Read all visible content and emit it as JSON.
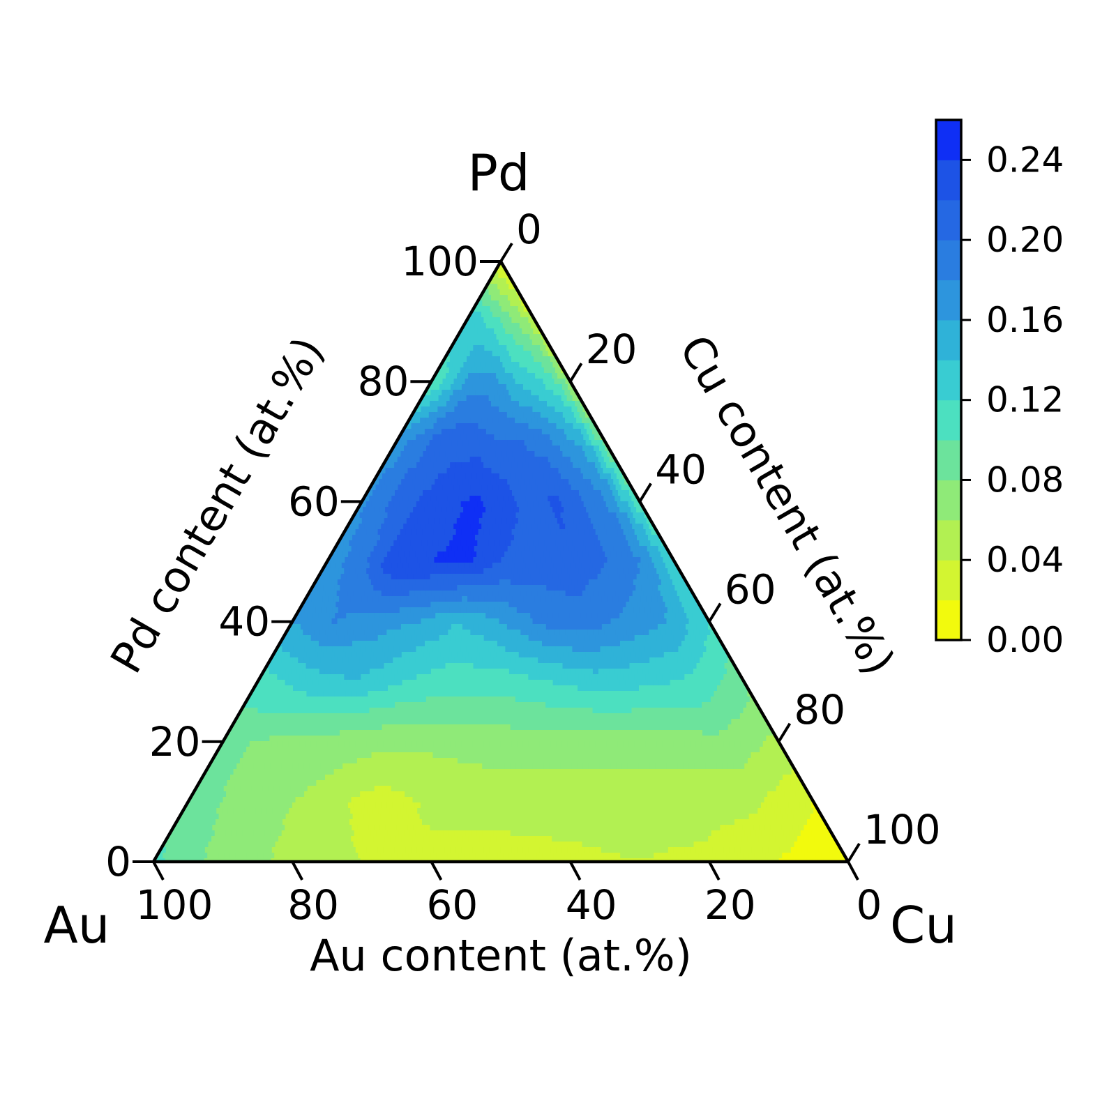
{
  "chart_data": {
    "type": "heatmap",
    "subtype": "ternary-filled-contour",
    "title": "",
    "corners": {
      "top": "Pd",
      "left": "Au",
      "right": "Cu"
    },
    "axes": {
      "bottom": {
        "label": "Au content (at.%)",
        "ticks": [
          "100",
          "80",
          "60",
          "40",
          "20",
          "0"
        ],
        "range": [
          0,
          100
        ]
      },
      "left": {
        "label": "Pd content (at.%)",
        "ticks": [
          "0",
          "20",
          "40",
          "60",
          "80",
          "100"
        ],
        "range": [
          0,
          100
        ]
      },
      "right": {
        "label": "Cu content (at.%)",
        "ticks": [
          "0",
          "20",
          "40",
          "60",
          "80",
          "100"
        ],
        "range": [
          0,
          100
        ]
      }
    },
    "colorbar": {
      "range": [
        0,
        0.26
      ],
      "ticks": [
        "0.00",
        "0.04",
        "0.08",
        "0.12",
        "0.16",
        "0.20",
        "0.24"
      ],
      "levels": [
        0.0,
        0.02,
        0.04,
        0.06,
        0.08,
        0.1,
        0.12,
        0.14,
        0.16,
        0.18,
        0.2,
        0.22,
        0.24,
        0.26
      ],
      "colors": [
        "#f2fa0d",
        "#d3f531",
        "#b2f052",
        "#8fea78",
        "#6ce39c",
        "#4ce0c0",
        "#39ccd2",
        "#2fb2d8",
        "#2d95dd",
        "#2a7de0",
        "#2568e3",
        "#1d53e6",
        "#0f2ff5"
      ]
    },
    "grid_pd_levels": [
      0,
      10,
      20,
      30,
      40,
      50,
      60,
      70,
      80,
      90,
      100
    ],
    "grid_au_fraction_levels": [
      0,
      0.1,
      0.2,
      0.3,
      0.4,
      0.5,
      0.6,
      0.7,
      0.8,
      0.9,
      1.0
    ],
    "values": [
      [
        0.0,
        0.02,
        0.035,
        0.04,
        0.035,
        0.03,
        0.035,
        0.04,
        0.055,
        0.07,
        0.105
      ],
      [
        0.02,
        0.045,
        0.05,
        0.05,
        0.05,
        0.05,
        0.045,
        0.03,
        0.055,
        0.07,
        0.09
      ],
      [
        0.055,
        0.075,
        0.07,
        0.07,
        0.07,
        0.07,
        0.065,
        0.065,
        0.07,
        0.075,
        0.085
      ],
      [
        0.085,
        0.115,
        0.125,
        0.13,
        0.12,
        0.11,
        0.11,
        0.12,
        0.14,
        0.13,
        0.11
      ],
      [
        0.12,
        0.16,
        0.175,
        0.19,
        0.185,
        0.16,
        0.14,
        0.16,
        0.17,
        0.18,
        0.16
      ],
      [
        0.125,
        0.18,
        0.2,
        0.215,
        0.21,
        0.22,
        0.245,
        0.24,
        0.24,
        0.19,
        0.17
      ],
      [
        0.1,
        0.175,
        0.2,
        0.225,
        0.21,
        0.235,
        0.245,
        0.23,
        0.22,
        0.2,
        0.175
      ],
      [
        0.08,
        0.15,
        0.17,
        0.19,
        0.2,
        0.2,
        0.21,
        0.215,
        0.21,
        0.19,
        0.17
      ],
      [
        0.06,
        0.1,
        0.12,
        0.13,
        0.14,
        0.16,
        0.17,
        0.17,
        0.15,
        0.12,
        0.1
      ],
      [
        0.03,
        0.06,
        0.07,
        0.08,
        0.09,
        0.1,
        0.11,
        0.12,
        0.13,
        0.14,
        0.14
      ],
      [
        0.02,
        0.02,
        0.02,
        0.02,
        0.02,
        0.02,
        0.02,
        0.02,
        0.02,
        0.02,
        0.02
      ]
    ]
  }
}
